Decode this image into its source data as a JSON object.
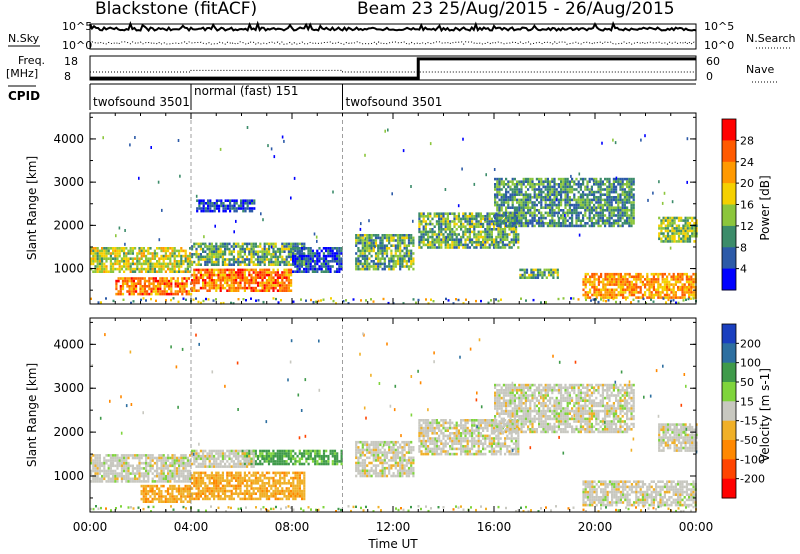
{
  "header": {
    "station": "Blackstone (fitACF)",
    "beam_info": "Beam 23 25/Aug/2015 - 26/Aug/2015"
  },
  "top_panels": {
    "nsky_label": "N.Sky",
    "nsearch_label": "N.Search",
    "nsky_ticks": [
      "10^5",
      "10^0"
    ],
    "nsearch_ticks": [
      "10^5",
      "10^0"
    ],
    "freq_label": "Freq.",
    "freq_unit": "[MHz]",
    "freq_ticks": [
      "18",
      "8"
    ],
    "nave_label": "Nave",
    "nave_ticks": [
      "60",
      "0"
    ],
    "cpid_label": "CPID",
    "cpid_segments": [
      {
        "start_hour": 0,
        "end_hour": 4,
        "label": "twofsound 3501"
      },
      {
        "start_hour": 4,
        "end_hour": 10,
        "label": "normal (fast) 151"
      },
      {
        "start_hour": 10,
        "end_hour": 24,
        "label": "twofsound 3501"
      }
    ]
  },
  "chart_data": [
    {
      "type": "heatmap",
      "name": "power",
      "ylabel": "Slant Range [km]",
      "xlim": [
        0,
        24
      ],
      "ylim": [
        180,
        4600
      ],
      "y_ticks": [
        1000,
        2000,
        3000,
        4000
      ],
      "x_ticks": [
        "00:00",
        "04:00",
        "08:00",
        "12:00",
        "16:00",
        "20:00",
        "00:00"
      ],
      "colorbar": {
        "label": "Power [dB]",
        "ticks": [
          "4",
          "8",
          "12",
          "16",
          "20",
          "24",
          "28"
        ],
        "colors": [
          "#0000ff",
          "#2c5aa8",
          "#3c8c6a",
          "#8cc63c",
          "#f5d000",
          "#ff9900",
          "#ff5a00",
          "#ff0000"
        ]
      },
      "regions": [
        {
          "t0": 0.0,
          "t1": 4.0,
          "r0": 900,
          "r1": 1500,
          "value": 18
        },
        {
          "t0": 1.0,
          "t1": 4.0,
          "r0": 400,
          "r1": 800,
          "value": 26
        },
        {
          "t0": 4.0,
          "t1": 8.5,
          "r0": 1100,
          "r1": 1600,
          "value": 14
        },
        {
          "t0": 4.0,
          "t1": 8.0,
          "r0": 500,
          "r1": 1000,
          "value": 26
        },
        {
          "t0": 8.0,
          "t1": 10.0,
          "r0": 900,
          "r1": 1500,
          "value": 8
        },
        {
          "t0": 4.2,
          "t1": 6.5,
          "r0": 2300,
          "r1": 2600,
          "value": 6
        },
        {
          "t0": 10.5,
          "t1": 12.8,
          "r0": 1000,
          "r1": 1800,
          "value": 14
        },
        {
          "t0": 13.0,
          "t1": 17.0,
          "r0": 1500,
          "r1": 2300,
          "value": 14
        },
        {
          "t0": 16.0,
          "t1": 21.5,
          "r0": 2000,
          "r1": 3100,
          "value": 12
        },
        {
          "t0": 22.5,
          "t1": 24.0,
          "r0": 1600,
          "r1": 2200,
          "value": 16
        },
        {
          "t0": 19.5,
          "t1": 24.0,
          "r0": 350,
          "r1": 900,
          "value": 24
        },
        {
          "t0": 17.0,
          "t1": 18.5,
          "r0": 800,
          "r1": 1000,
          "value": 14
        }
      ]
    },
    {
      "type": "heatmap",
      "name": "velocity",
      "ylabel": "Slant Range [km]",
      "xlabel": "Time UT",
      "xlim": [
        0,
        24
      ],
      "ylim": [
        180,
        4600
      ],
      "y_ticks": [
        1000,
        2000,
        3000,
        4000
      ],
      "x_ticks": [
        "00:00",
        "04:00",
        "08:00",
        "12:00",
        "16:00",
        "20:00",
        "00:00"
      ],
      "colorbar": {
        "label": "Velocity [m s-1]",
        "ticks": [
          "200",
          "100",
          "50",
          "15",
          "-15",
          "-50",
          "-100",
          "-200"
        ],
        "colors": [
          "#1a3fbf",
          "#2d6fa0",
          "#3f9a4a",
          "#7fd43c",
          "#c8c8c0",
          "#f0b028",
          "#ff8800",
          "#ff4400",
          "#ff0000"
        ]
      },
      "regions": [
        {
          "t0": 0.0,
          "t1": 4.0,
          "r0": 900,
          "r1": 1500,
          "value": 0
        },
        {
          "t0": 2.0,
          "t1": 4.0,
          "r0": 400,
          "r1": 800,
          "value": -40
        },
        {
          "t0": 4.0,
          "t1": 8.5,
          "r0": 500,
          "r1": 1100,
          "value": -40
        },
        {
          "t0": 6.0,
          "t1": 10.0,
          "r0": 1300,
          "r1": 1600,
          "value": 60
        },
        {
          "t0": 4.0,
          "t1": 6.5,
          "r0": 1200,
          "r1": 1600,
          "value": 0
        },
        {
          "t0": 10.5,
          "t1": 12.8,
          "r0": 1000,
          "r1": 1800,
          "value": 0
        },
        {
          "t0": 13.0,
          "t1": 17.0,
          "r0": 1500,
          "r1": 2300,
          "value": 0
        },
        {
          "t0": 16.0,
          "t1": 21.5,
          "r0": 2000,
          "r1": 3100,
          "value": 0
        },
        {
          "t0": 19.5,
          "t1": 24.0,
          "r0": 350,
          "r1": 900,
          "value": 0
        },
        {
          "t0": 22.5,
          "t1": 24.0,
          "r0": 1600,
          "r1": 2200,
          "value": 0
        }
      ]
    }
  ]
}
